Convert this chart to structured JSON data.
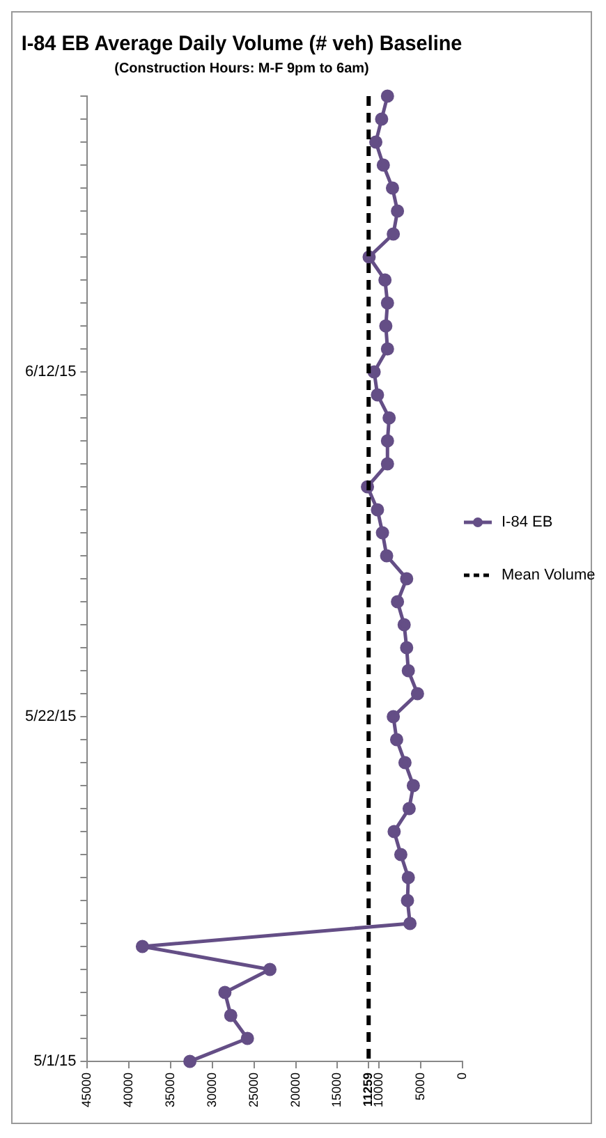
{
  "chart_data": {
    "type": "line",
    "orientation": "horizontal",
    "title": "I-84 EB Average Daily Volume (# veh) Baseline",
    "subtitle": "(Construction Hours: M-F 9pm to 6am)",
    "categories": [
      null,
      null,
      null,
      null,
      null,
      null,
      null,
      null,
      null,
      null,
      null,
      null,
      "6/12/15",
      null,
      null,
      null,
      null,
      null,
      null,
      null,
      null,
      null,
      null,
      null,
      null,
      null,
      null,
      "5/22/15",
      null,
      null,
      null,
      null,
      null,
      null,
      null,
      null,
      null,
      null,
      null,
      null,
      null,
      null,
      "5/1/15"
    ],
    "series": [
      {
        "name": "I-84 EB",
        "color": "#644e86",
        "values": [
          9000,
          9700,
          10400,
          9500,
          8400,
          7800,
          8300,
          11200,
          9300,
          9000,
          9200,
          9000,
          10600,
          10200,
          8800,
          9000,
          9000,
          11400,
          10200,
          9600,
          9100,
          6700,
          7800,
          7000,
          6700,
          6500,
          5400,
          8300,
          7900,
          6900,
          5900,
          6400,
          8200,
          7400,
          6500,
          6600,
          6300,
          38400,
          23100,
          28500,
          27800,
          25800,
          32700
        ]
      }
    ],
    "ref_lines": [
      {
        "axis": "x",
        "value": 11259,
        "label": "Mean Volume",
        "color": "#000000",
        "line_style": "dashed"
      }
    ],
    "xlim": [
      45000,
      0
    ],
    "xticks": [
      0,
      5000,
      10000,
      11259,
      15000,
      20000,
      25000,
      30000,
      35000,
      40000,
      45000
    ],
    "grid": false,
    "legend": "right",
    "marker": "circle",
    "line_style": "solid"
  }
}
